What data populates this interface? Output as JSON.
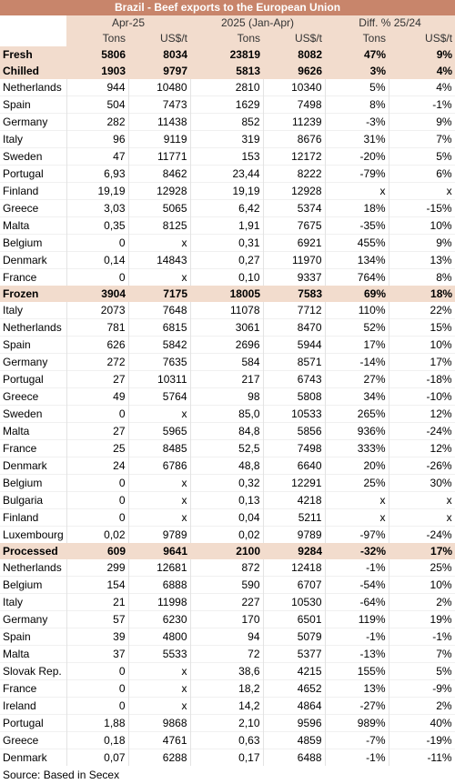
{
  "title": "Brazil - Beef exports to the European Union",
  "periods": {
    "p1": "Apr-25",
    "p2": "2025 (Jan-Apr)",
    "p3": "Diff. % 25/24"
  },
  "units": {
    "u1": "Tons",
    "u2": "US$/t",
    "u3": "Tons",
    "u4": "US$/t",
    "u5": "Tons",
    "u6": "US$/t"
  },
  "groups": [
    {
      "section": [
        "Fresh",
        "5806",
        "8034",
        "23819",
        "8082",
        "47%",
        "9%"
      ],
      "rows": []
    },
    {
      "section": [
        "Chilled",
        "1903",
        "9797",
        "5813",
        "9626",
        "3%",
        "4%"
      ],
      "rows": [
        [
          "Netherlands",
          "944",
          "10480",
          "2810",
          "10340",
          "5%",
          "4%"
        ],
        [
          "Spain",
          "504",
          "7473",
          "1629",
          "7498",
          "8%",
          "-1%"
        ],
        [
          "Germany",
          "282",
          "11438",
          "852",
          "11239",
          "-3%",
          "9%"
        ],
        [
          "Italy",
          "96",
          "9119",
          "319",
          "8676",
          "31%",
          "7%"
        ],
        [
          "Sweden",
          "47",
          "11771",
          "153",
          "12172",
          "-20%",
          "5%"
        ],
        [
          "Portugal",
          "6,93",
          "8462",
          "23,44",
          "8222",
          "-79%",
          "6%"
        ],
        [
          "Finland",
          "19,19",
          "12928",
          "19,19",
          "12928",
          "x",
          "x"
        ],
        [
          "Greece",
          "3,03",
          "5065",
          "6,42",
          "5374",
          "18%",
          "-15%"
        ],
        [
          "Malta",
          "0,35",
          "8125",
          "1,91",
          "7675",
          "-35%",
          "10%"
        ],
        [
          "Belgium",
          "0",
          "x",
          "0,31",
          "6921",
          "455%",
          "9%"
        ],
        [
          "Denmark",
          "0,14",
          "14843",
          "0,27",
          "11970",
          "134%",
          "13%"
        ],
        [
          "France",
          "0",
          "x",
          "0,10",
          "9337",
          "764%",
          "8%"
        ]
      ]
    },
    {
      "section": [
        "Frozen",
        "3904",
        "7175",
        "18005",
        "7583",
        "69%",
        "18%"
      ],
      "rows": [
        [
          "Italy",
          "2073",
          "7648",
          "11078",
          "7712",
          "110%",
          "22%"
        ],
        [
          "Netherlands",
          "781",
          "6815",
          "3061",
          "8470",
          "52%",
          "15%"
        ],
        [
          "Spain",
          "626",
          "5842",
          "2696",
          "5944",
          "17%",
          "10%"
        ],
        [
          "Germany",
          "272",
          "7635",
          "584",
          "8571",
          "-14%",
          "17%"
        ],
        [
          "Portugal",
          "27",
          "10311",
          "217",
          "6743",
          "27%",
          "-18%"
        ],
        [
          "Greece",
          "49",
          "5764",
          "98",
          "5808",
          "34%",
          "-10%"
        ],
        [
          "Sweden",
          "0",
          "x",
          "85,0",
          "10533",
          "265%",
          "12%"
        ],
        [
          "Malta",
          "27",
          "5965",
          "84,8",
          "5856",
          "936%",
          "-24%"
        ],
        [
          "France",
          "25",
          "8485",
          "52,5",
          "7498",
          "333%",
          "12%"
        ],
        [
          "Denmark",
          "24",
          "6786",
          "48,8",
          "6640",
          "20%",
          "-26%"
        ],
        [
          "Belgium",
          "0",
          "x",
          "0,32",
          "12291",
          "25%",
          "30%"
        ],
        [
          "Bulgaria",
          "0",
          "x",
          "0,13",
          "4218",
          "x",
          "x"
        ],
        [
          "Finland",
          "0",
          "x",
          "0,04",
          "5211",
          "x",
          "x"
        ],
        [
          "Luxembourg",
          "0,02",
          "9789",
          "0,02",
          "9789",
          "-97%",
          "-24%"
        ]
      ]
    },
    {
      "section": [
        "Processed",
        "609",
        "9641",
        "2100",
        "9284",
        "-32%",
        "17%"
      ],
      "rows": [
        [
          "Netherlands",
          "299",
          "12681",
          "872",
          "12418",
          "-1%",
          "25%"
        ],
        [
          "Belgium",
          "154",
          "6888",
          "590",
          "6707",
          "-54%",
          "10%"
        ],
        [
          "Italy",
          "21",
          "11998",
          "227",
          "10530",
          "-64%",
          "2%"
        ],
        [
          "Germany",
          "57",
          "6230",
          "170",
          "6501",
          "119%",
          "19%"
        ],
        [
          "Spain",
          "39",
          "4800",
          "94",
          "5079",
          "-1%",
          "-1%"
        ],
        [
          "Malta",
          "37",
          "5533",
          "72",
          "5377",
          "-13%",
          "7%"
        ],
        [
          "Slovak Rep.",
          "0",
          "x",
          "38,6",
          "4215",
          "155%",
          "5%"
        ],
        [
          "France",
          "0",
          "x",
          "18,2",
          "4652",
          "13%",
          "-9%"
        ],
        [
          "Ireland",
          "0",
          "x",
          "14,2",
          "4864",
          "-27%",
          "2%"
        ],
        [
          "Portugal",
          "1,88",
          "9868",
          "2,10",
          "9596",
          "989%",
          "40%"
        ],
        [
          "Greece",
          "0,18",
          "4761",
          "0,63",
          "4859",
          "-7%",
          "-19%"
        ],
        [
          "Denmark",
          "0,07",
          "6288",
          "0,17",
          "6488",
          "-1%",
          "-11%"
        ]
      ]
    }
  ],
  "source": "Source: Based in Secex"
}
